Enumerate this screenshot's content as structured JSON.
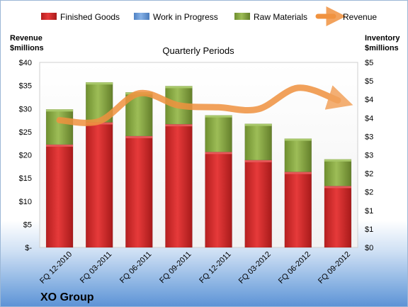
{
  "chart_data": {
    "type": "bar",
    "stacked": true,
    "title": "Quarterly Periods",
    "brand": "XO Group",
    "y_left_title": [
      "Revenue",
      "$millions"
    ],
    "y_right_title": [
      "Inventory",
      "$millions"
    ],
    "y_left_ticks": [
      "$-",
      "$5",
      "$10",
      "$15",
      "$20",
      "$25",
      "$30",
      "$35",
      "$40"
    ],
    "y_right_ticks": [
      "$0",
      "$1",
      "$1",
      "$2",
      "$2",
      "$3",
      "$3",
      "$4",
      "$4",
      "$5",
      "$5"
    ],
    "ylim_left": [
      0,
      40
    ],
    "ylim_right": [
      0,
      5
    ],
    "grid": false,
    "legend_position": "top",
    "categories": [
      "FQ 12-2010",
      "FQ 03-2011",
      "FQ 06-2011",
      "FQ 09-2011",
      "FQ 12-2011",
      "FQ 03-2012",
      "FQ 06-2012",
      "FQ 09-2012"
    ],
    "series": [
      {
        "name": "Finished Goods",
        "axis": "right",
        "color": "#d92b2b",
        "values": [
          2.78,
          3.38,
          3.01,
          3.33,
          2.58,
          2.36,
          2.04,
          1.66
        ]
      },
      {
        "name": "Work in Progress",
        "axis": "right",
        "color": "#6f9ed8",
        "values": [
          0,
          0,
          0,
          0,
          0,
          0,
          0,
          0
        ]
      },
      {
        "name": "Raw Materials",
        "axis": "right",
        "color": "#8fb047",
        "values": [
          0.95,
          1.08,
          1.18,
          1.03,
          0.99,
          0.98,
          0.9,
          0.72
        ]
      },
      {
        "name": "Revenue",
        "axis": "left",
        "type": "line",
        "color": "#f0923f",
        "values": [
          27.5,
          27.3,
          33.3,
          30.7,
          30.3,
          29.9,
          34.5,
          31.8
        ]
      }
    ]
  }
}
